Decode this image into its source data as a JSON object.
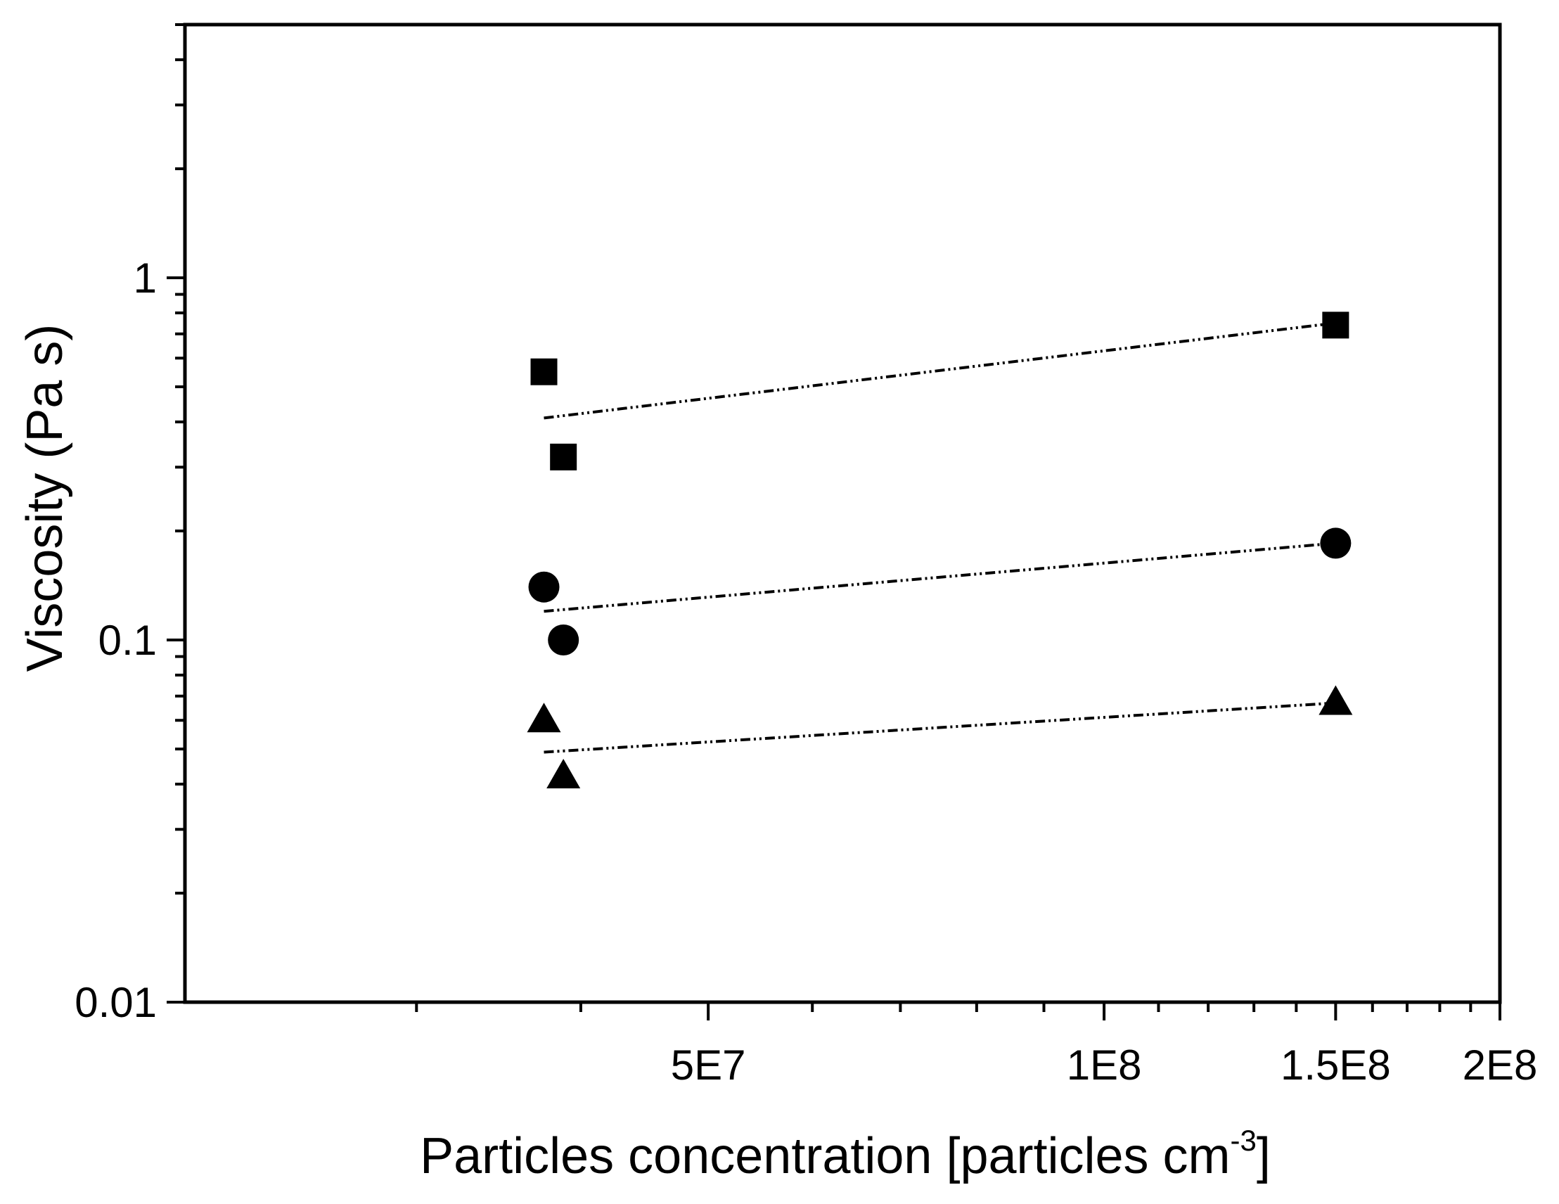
{
  "chart_data": {
    "type": "scatter",
    "xlabel": "Particles concentration [particles cm",
    "xlabel_superscript": "-3",
    "xlabel_suffix": "]",
    "ylabel": "Viscosity (Pa s)",
    "xscale": "log",
    "yscale": "log",
    "xlim": [
      20000000,
      200000000
    ],
    "ylim": [
      0.01,
      5
    ],
    "x_tick_labels": [
      {
        "value": 50000000,
        "label": "5E7"
      },
      {
        "value": 100000000,
        "label": "1E8"
      },
      {
        "value": 150000000,
        "label": "1.5E8"
      },
      {
        "value": 200000000,
        "label": "2E8"
      }
    ],
    "y_tick_labels": [
      {
        "value": 0.01,
        "label": "0.01"
      },
      {
        "value": 0.1,
        "label": "0.1"
      },
      {
        "value": 1,
        "label": "1"
      }
    ],
    "grid": false,
    "legend": "none",
    "series": [
      {
        "marker": "square",
        "points": [
          {
            "x": 37500000,
            "y": 0.55
          },
          {
            "x": 38800000,
            "y": 0.32
          },
          {
            "x": 150000000,
            "y": 0.74
          }
        ],
        "fit_line": [
          {
            "x": 37500000,
            "y": 0.41
          },
          {
            "x": 150000000,
            "y": 0.75
          }
        ]
      },
      {
        "marker": "circle",
        "points": [
          {
            "x": 37500000,
            "y": 0.14
          },
          {
            "x": 38800000,
            "y": 0.1
          },
          {
            "x": 150000000,
            "y": 0.185
          }
        ],
        "fit_line": [
          {
            "x": 37500000,
            "y": 0.12
          },
          {
            "x": 150000000,
            "y": 0.185
          }
        ]
      },
      {
        "marker": "triangle",
        "points": [
          {
            "x": 37500000,
            "y": 0.06
          },
          {
            "x": 38800000,
            "y": 0.042
          },
          {
            "x": 150000000,
            "y": 0.067
          }
        ],
        "fit_line": [
          {
            "x": 37500000,
            "y": 0.049
          },
          {
            "x": 150000000,
            "y": 0.067
          }
        ]
      }
    ]
  }
}
